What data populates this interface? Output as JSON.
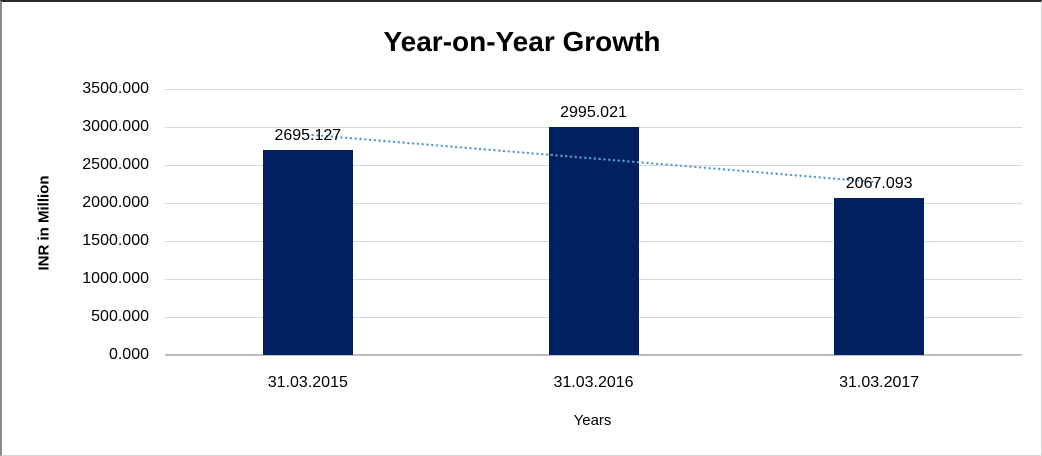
{
  "chart_data": {
    "type": "bar",
    "title": "Year-on-Year Growth",
    "xlabel": "Years",
    "ylabel": "INR in Million",
    "categories": [
      "31.03.2015",
      "31.03.2016",
      "31.03.2017"
    ],
    "values": [
      2695.127,
      2995.021,
      2067.093
    ],
    "value_labels": [
      "2695.127",
      "2995.021",
      "2067.093"
    ],
    "ylim": [
      0,
      3500
    ],
    "ytick_step": 500,
    "ytick_labels": [
      "0.000",
      "500.000",
      "1000.000",
      "1500.000",
      "2000.000",
      "2500.000",
      "3000.000",
      "3500.000"
    ],
    "grid": true,
    "legend_position": "none",
    "bar_color": "#002060",
    "trendline": {
      "type": "linear",
      "style": "dotted",
      "color": "#5b9bd5"
    }
  }
}
